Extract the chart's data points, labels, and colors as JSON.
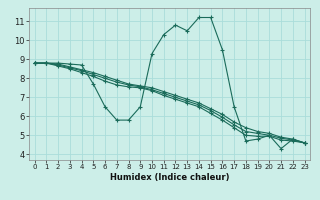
{
  "title": "",
  "xlabel": "Humidex (Indice chaleur)",
  "ylabel": "",
  "bg_color": "#cceee8",
  "grid_color": "#aaddda",
  "line_color": "#1a6b5a",
  "xlim": [
    -0.5,
    23.5
  ],
  "ylim": [
    3.7,
    11.7
  ],
  "xticks": [
    0,
    1,
    2,
    3,
    4,
    5,
    6,
    7,
    8,
    9,
    10,
    11,
    12,
    13,
    14,
    15,
    16,
    17,
    18,
    19,
    20,
    21,
    22,
    23
  ],
  "yticks": [
    4,
    5,
    6,
    7,
    8,
    9,
    10,
    11
  ],
  "lines": [
    {
      "x": [
        0,
        1,
        2,
        3,
        4,
        5,
        6,
        7,
        8,
        9,
        10,
        11,
        12,
        13,
        14,
        15,
        16,
        17,
        18,
        19,
        20,
        21,
        22,
        23
      ],
      "y": [
        8.8,
        8.8,
        8.8,
        8.75,
        8.7,
        7.7,
        6.5,
        5.8,
        5.8,
        6.5,
        9.3,
        10.3,
        10.8,
        10.5,
        11.2,
        11.2,
        9.5,
        6.5,
        4.7,
        4.8,
        5.0,
        4.3,
        4.8,
        4.6
      ]
    },
    {
      "x": [
        0,
        1,
        2,
        3,
        4,
        5,
        6,
        7,
        8,
        9,
        10,
        11,
        12,
        13,
        14,
        15,
        16,
        17,
        18,
        19,
        20,
        21,
        22,
        23
      ],
      "y": [
        8.8,
        8.8,
        8.75,
        8.6,
        8.45,
        8.3,
        8.1,
        7.9,
        7.7,
        7.6,
        7.5,
        7.3,
        7.1,
        6.9,
        6.7,
        6.4,
        6.1,
        5.7,
        5.4,
        5.2,
        5.1,
        4.9,
        4.8,
        4.6
      ]
    },
    {
      "x": [
        0,
        1,
        2,
        3,
        4,
        5,
        6,
        7,
        8,
        9,
        10,
        11,
        12,
        13,
        14,
        15,
        16,
        17,
        18,
        19,
        20,
        21,
        22,
        23
      ],
      "y": [
        8.8,
        8.8,
        8.7,
        8.55,
        8.4,
        8.2,
        8.0,
        7.8,
        7.65,
        7.55,
        7.4,
        7.2,
        7.0,
        6.8,
        6.6,
        6.3,
        5.95,
        5.55,
        5.2,
        5.1,
        5.0,
        4.85,
        4.75,
        4.6
      ]
    },
    {
      "x": [
        0,
        1,
        2,
        3,
        4,
        5,
        6,
        7,
        8,
        9,
        10,
        11,
        12,
        13,
        14,
        15,
        16,
        17,
        18,
        19,
        20,
        21,
        22,
        23
      ],
      "y": [
        8.8,
        8.8,
        8.65,
        8.5,
        8.3,
        8.1,
        7.85,
        7.65,
        7.55,
        7.5,
        7.35,
        7.1,
        6.9,
        6.7,
        6.5,
        6.15,
        5.8,
        5.4,
        5.0,
        4.95,
        4.95,
        4.75,
        4.7,
        4.6
      ]
    }
  ]
}
